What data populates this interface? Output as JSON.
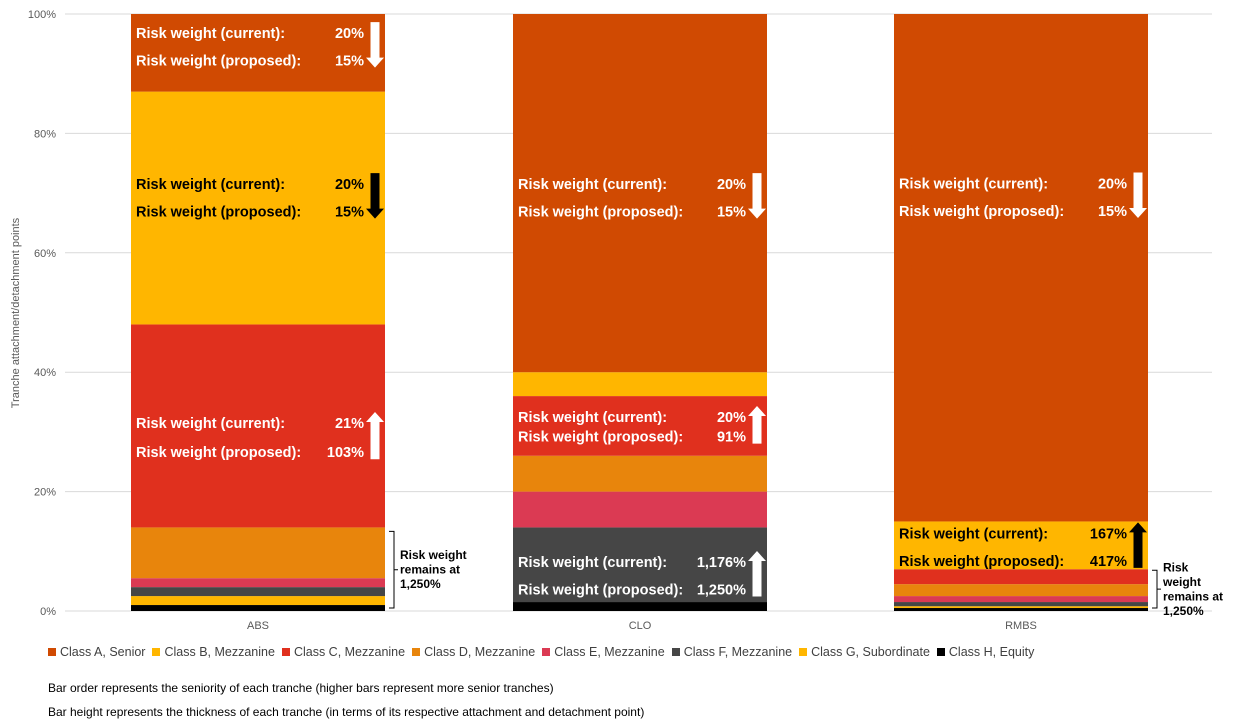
{
  "chart_data": {
    "type": "bar",
    "stacked": true,
    "ylabel": "Tranche attachment/detachment points",
    "xlabel": "",
    "ylim": [
      0,
      100
    ],
    "y_ticks": [
      "0%",
      "20%",
      "40%",
      "60%",
      "80%",
      "100%"
    ],
    "grid": true,
    "legend_position": "bottom",
    "categories": [
      "ABS",
      "CLO",
      "RMBS"
    ],
    "series": [
      {
        "name": "Class H, Equity",
        "color": "#000000",
        "values": [
          1,
          1.5,
          0.5
        ]
      },
      {
        "name": "Class G, Subordinate",
        "color": "#ffb600",
        "values": [
          1.5,
          0,
          0.3
        ]
      },
      {
        "name": "Class F, Mezzanine",
        "color": "#464646",
        "values": [
          1.5,
          12.5,
          0.7
        ]
      },
      {
        "name": "Class E, Mezzanine",
        "color": "#db3a53",
        "values": [
          1.5,
          6,
          1
        ]
      },
      {
        "name": "Class D, Mezzanine",
        "color": "#e8850c",
        "values": [
          8.5,
          6,
          2
        ]
      },
      {
        "name": "Class C, Mezzanine",
        "color": "#e0301e",
        "values": [
          34,
          10,
          2.5
        ]
      },
      {
        "name": "Class B, Mezzanine",
        "color": "#ffb600",
        "values": [
          39,
          4,
          8
        ]
      },
      {
        "name": "Class A, Senior",
        "color": "#d04a02",
        "values": [
          13,
          60,
          85
        ]
      }
    ],
    "legend": [
      {
        "name": "Class A, Senior",
        "color": "#d04a02"
      },
      {
        "name": "Class B, Mezzanine",
        "color": "#ffb600"
      },
      {
        "name": "Class C, Mezzanine",
        "color": "#e0301e"
      },
      {
        "name": "Class D, Mezzanine",
        "color": "#e8850c"
      },
      {
        "name": "Class E, Mezzanine",
        "color": "#db3a53"
      },
      {
        "name": "Class F, Mezzanine",
        "color": "#464646"
      },
      {
        "name": "Class G, Subordinate",
        "color": "#ffb600"
      },
      {
        "name": "Class H, Equity",
        "color": "#000000"
      }
    ],
    "annotations": [
      {
        "category": "ABS",
        "line1": "Risk weight (current):",
        "value1": "20%",
        "line2": "Risk weight (proposed):",
        "value2": "15%",
        "y1": 96.8,
        "y2": 92.2,
        "direction": "down",
        "color": "#ffffff"
      },
      {
        "category": "ABS",
        "line1": "Risk weight (current):",
        "value1": "20%",
        "line2": "Risk weight (proposed):",
        "value2": "15%",
        "y1": 71.5,
        "y2": 66.9,
        "direction": "down",
        "color": "#000000"
      },
      {
        "category": "ABS",
        "line1": "Risk weight (current):",
        "value1": "21%",
        "line2": "Risk weight (proposed):",
        "value2": "103%",
        "y1": 31.5,
        "y2": 26.6,
        "direction": "up",
        "color": "#ffffff"
      },
      {
        "category": "CLO",
        "line1": "Risk weight (current):",
        "value1": "20%",
        "line2": "Risk weight (proposed):",
        "value2": "15%",
        "y1": 71.5,
        "y2": 66.9,
        "direction": "down",
        "color": "#ffffff"
      },
      {
        "category": "CLO",
        "line1": "Risk weight (current):",
        "value1": "20%",
        "line2": "Risk weight (proposed):",
        "value2": "91%",
        "y1": 32.5,
        "y2": 29.2,
        "direction": "up",
        "color": "#ffffff"
      },
      {
        "category": "CLO",
        "line1": "Risk weight (current):",
        "value1": "1,176%",
        "line2": "Risk weight (proposed):",
        "value2": "1,250%",
        "y1": 8.2,
        "y2": 3.6,
        "direction": "up",
        "color": "#ffffff"
      },
      {
        "category": "RMBS",
        "line1": "Risk weight (current):",
        "value1": "20%",
        "line2": "Risk weight (proposed):",
        "value2": "15%",
        "y1": 71.6,
        "y2": 67.0,
        "direction": "down",
        "color": "#ffffff"
      },
      {
        "category": "RMBS",
        "line1": "Risk weight (current):",
        "value1": "167%",
        "line2": "Risk weight (proposed):",
        "value2": "417%",
        "y1": 13.0,
        "y2": 8.4,
        "direction": "up",
        "color": "#000000"
      }
    ],
    "brackets": [
      {
        "category": "ABS",
        "lines": [
          "Risk weight",
          "remains at",
          "1,250%"
        ],
        "from": 0,
        "to": 13.5
      },
      {
        "category": "RMBS",
        "lines": [
          "Risk",
          "weight",
          "remains at",
          "1,250%"
        ],
        "from": 0,
        "to": 7
      }
    ]
  },
  "notes": [
    "Bar order represents the seniority of each tranche (higher bars represent more senior tranches)",
    "Bar height represents the thickness of each tranche (in terms of its respective attachment and detachment point)"
  ]
}
